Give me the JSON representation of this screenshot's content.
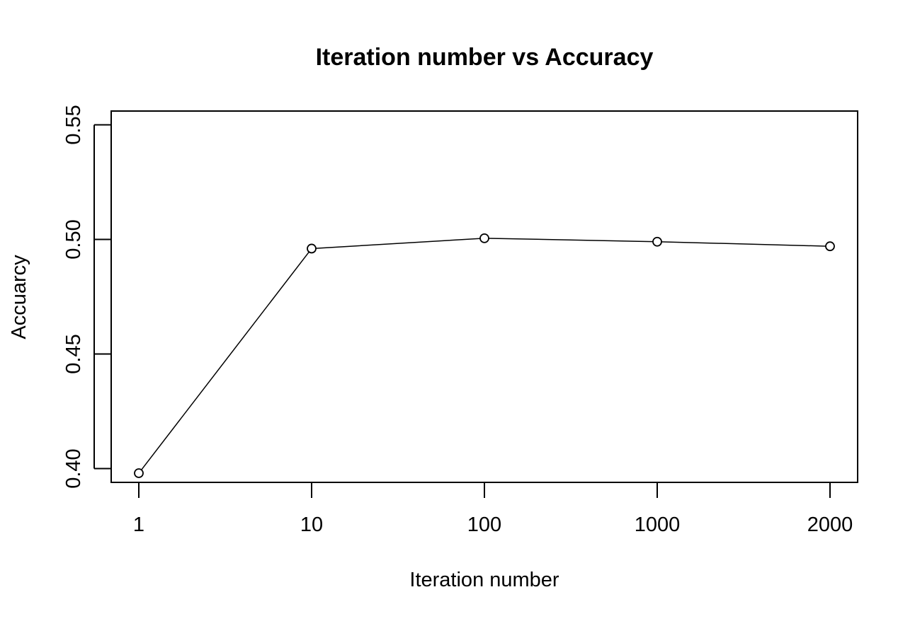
{
  "chart_data": {
    "type": "line",
    "title": "Iteration number vs Accuracy",
    "xlabel": "Iteration number",
    "ylabel": "Accuarcy",
    "categories": [
      "1",
      "10",
      "100",
      "1000",
      "2000"
    ],
    "values": [
      0.398,
      0.496,
      0.5005,
      0.499,
      0.497
    ],
    "ylim": [
      0.394,
      0.556
    ],
    "yticks": [
      0.4,
      0.45,
      0.5,
      0.55
    ],
    "ytick_labels": [
      "0.40",
      "0.45",
      "0.50",
      "0.55"
    ],
    "markers": "open-circle",
    "grid": false,
    "legend": "none",
    "colors": {
      "line": "#000000",
      "axis": "#000000",
      "background": "#ffffff"
    }
  }
}
